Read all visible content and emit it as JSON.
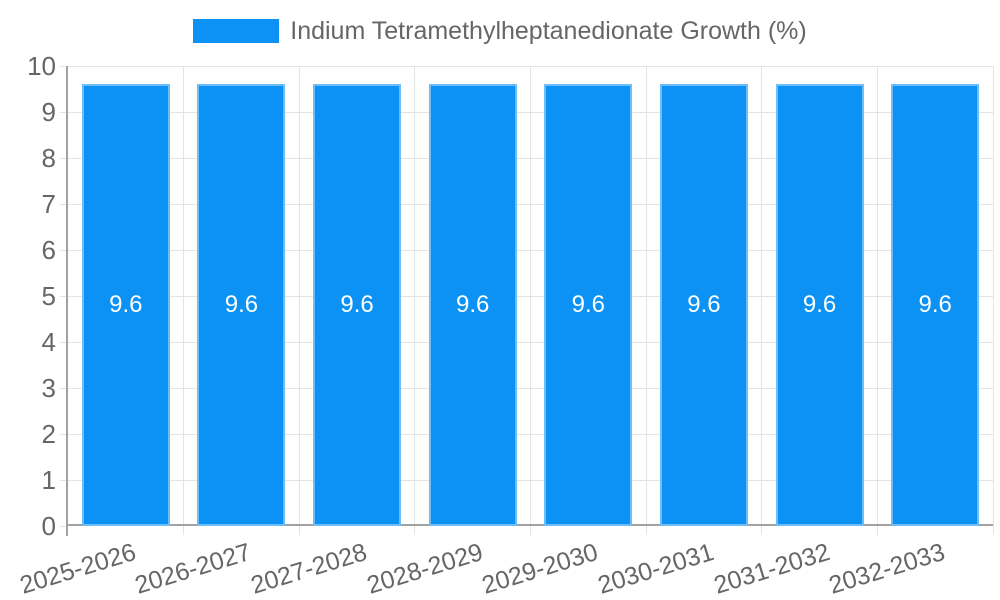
{
  "legend": {
    "label": "Indium Tetramethylheptanedionate Growth (%)"
  },
  "colors": {
    "bar": "#0b92f4",
    "grid": "#e4e4e4",
    "axis": "#a2a2a2",
    "tick_text": "#666666",
    "legend_text": "#666666",
    "value_label": "#ffffff",
    "background": "#ffffff"
  },
  "chart_data": {
    "type": "bar",
    "title": "",
    "categories": [
      "2025-2026",
      "2026-2027",
      "2027-2028",
      "2028-2029",
      "2029-2030",
      "2030-2031",
      "2031-2032",
      "2032-2033"
    ],
    "series": [
      {
        "name": "Indium Tetramethylheptanedionate Growth (%)",
        "values": [
          9.6,
          9.6,
          9.6,
          9.6,
          9.6,
          9.6,
          9.6,
          9.6
        ]
      }
    ],
    "value_labels": [
      "9.6",
      "9.6",
      "9.6",
      "9.6",
      "9.6",
      "9.6",
      "9.6",
      "9.6"
    ],
    "xlabel": "",
    "ylabel": "",
    "ylim": [
      0,
      10
    ],
    "yticks": [
      0,
      1,
      2,
      3,
      4,
      5,
      6,
      7,
      8,
      9,
      10
    ],
    "grid": true,
    "legend_position": "top"
  }
}
